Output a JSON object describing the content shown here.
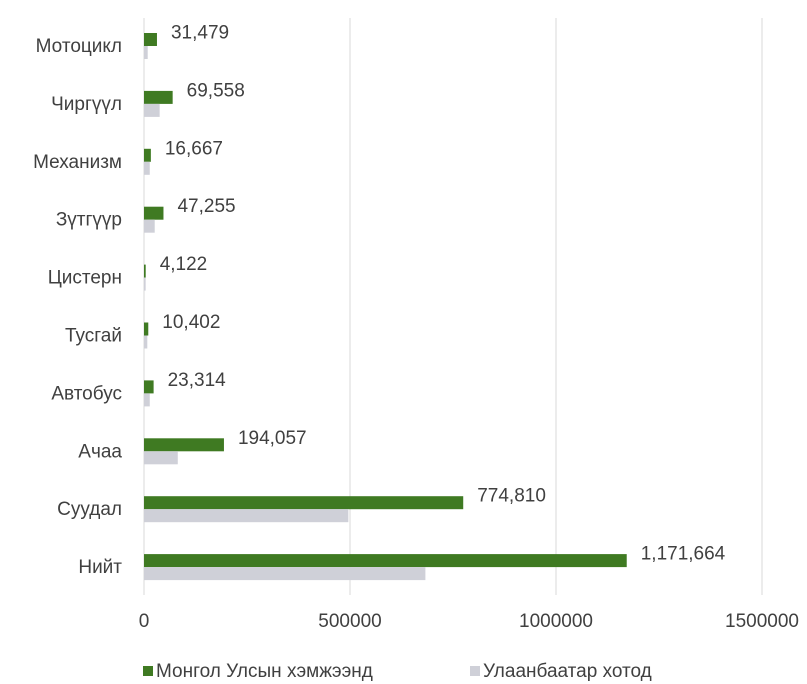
{
  "chart_data": {
    "type": "hbar",
    "categories": [
      "Мотоцикл",
      "Чиргүүл",
      "Механизм",
      "Зүтгүүр",
      "Цистерн",
      "Тусгай",
      "Автобус",
      "Ачаа",
      "Суудал",
      "Нийт"
    ],
    "series": [
      {
        "name": "Монгол Улсын хэмжээнд",
        "color": "#3f7a22",
        "values": [
          31479,
          69558,
          16667,
          47255,
          4122,
          10402,
          23314,
          194057,
          774810,
          1171664
        ],
        "value_labels": [
          "31,479",
          "69,558",
          "16,667",
          "47,255",
          "4,122",
          "10,402",
          "23,314",
          "194,057",
          "774,810",
          "1,171,664"
        ]
      },
      {
        "name": "Улаанбаатар хотод",
        "color": "#cfd0d8",
        "values": [
          9000,
          38000,
          14000,
          26000,
          4000,
          8000,
          14000,
          82000,
          496000,
          683000
        ]
      }
    ],
    "xlim": [
      0,
      1500000
    ],
    "xticks": [
      0,
      500000,
      1000000,
      1500000
    ],
    "grid": true
  }
}
